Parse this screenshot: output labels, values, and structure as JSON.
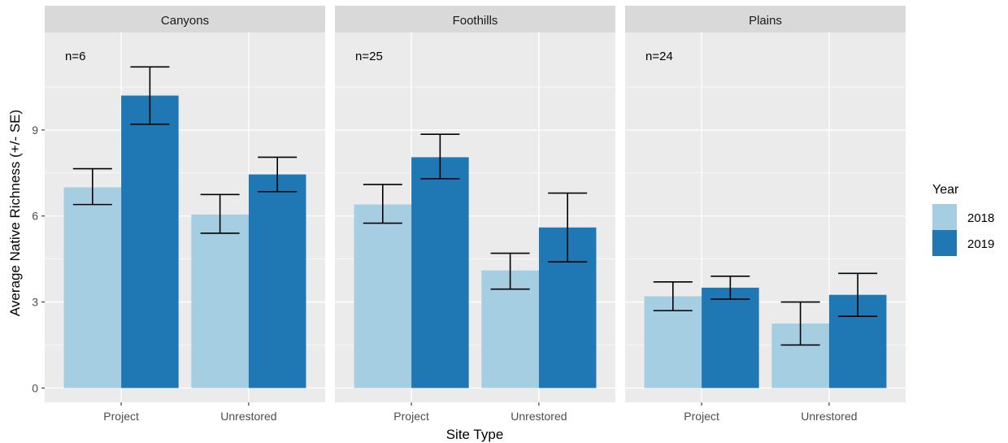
{
  "chart_data": {
    "type": "bar",
    "xlabel": "Site Type",
    "ylabel": "Average Native Richness (+/- SE)",
    "ylim": [
      -0.5,
      12.4
    ],
    "yticks": [
      0,
      3,
      6,
      9
    ],
    "categories": [
      "Project",
      "Unrestored"
    ],
    "legend": {
      "title": "Year",
      "position": "right"
    },
    "grid": true,
    "series_styles": [
      {
        "name": "2018",
        "color": "#A6CEE3"
      },
      {
        "name": "2019",
        "color": "#1F78B4"
      }
    ],
    "colors": {
      "panel_bg": "#EBEBEB",
      "strip_bg": "#D9D9D9",
      "grid": "#FFFFFF",
      "errorbar": "#000000"
    },
    "panels": [
      {
        "name": "Canyons",
        "annotation": "n=6",
        "series": [
          {
            "name": "2018",
            "values": [
              7.0,
              6.05
            ],
            "err_low": [
              6.4,
              5.4
            ],
            "err_high": [
              7.65,
              6.75
            ]
          },
          {
            "name": "2019",
            "values": [
              10.2,
              7.45
            ],
            "err_low": [
              9.2,
              6.85
            ],
            "err_high": [
              11.2,
              8.05
            ]
          }
        ]
      },
      {
        "name": "Foothills",
        "annotation": "n=25",
        "series": [
          {
            "name": "2018",
            "values": [
              6.4,
              4.1
            ],
            "err_low": [
              5.75,
              3.45
            ],
            "err_high": [
              7.1,
              4.7
            ]
          },
          {
            "name": "2019",
            "values": [
              8.05,
              5.6
            ],
            "err_low": [
              7.3,
              4.4
            ],
            "err_high": [
              8.85,
              6.8
            ]
          }
        ]
      },
      {
        "name": "Plains",
        "annotation": "n=24",
        "series": [
          {
            "name": "2018",
            "values": [
              3.2,
              2.25
            ],
            "err_low": [
              2.7,
              1.5
            ],
            "err_high": [
              3.7,
              3.0
            ]
          },
          {
            "name": "2019",
            "values": [
              3.5,
              3.25
            ],
            "err_low": [
              3.1,
              2.5
            ],
            "err_high": [
              3.9,
              4.0
            ]
          }
        ]
      }
    ]
  }
}
